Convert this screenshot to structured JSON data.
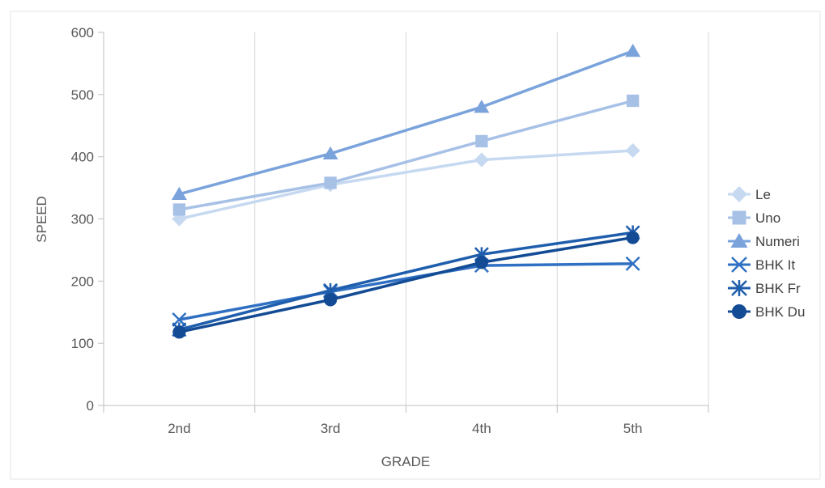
{
  "chart_data": {
    "type": "line",
    "title": "",
    "xlabel": "GRADE",
    "ylabel": "SPEED",
    "categories": [
      "2nd",
      "3rd",
      "4th",
      "5th"
    ],
    "ylim": [
      0,
      600
    ],
    "yticks": [
      0,
      100,
      200,
      300,
      400,
      500,
      600
    ],
    "grid": "vertical",
    "legend_position": "right",
    "series": [
      {
        "name": "Le",
        "values": [
          300,
          355,
          395,
          410
        ],
        "color": "#c6d9f1",
        "marker": "diamond"
      },
      {
        "name": "Uno",
        "values": [
          315,
          358,
          425,
          490
        ],
        "color": "#a7c1e6",
        "marker": "square"
      },
      {
        "name": "Numeri",
        "values": [
          340,
          405,
          480,
          570
        ],
        "color": "#7aa3dc",
        "marker": "triangle"
      },
      {
        "name": "BHK It",
        "values": [
          138,
          183,
          225,
          228
        ],
        "color": "#2f70c3",
        "marker": "x"
      },
      {
        "name": "BHK Fr",
        "values": [
          122,
          185,
          243,
          278
        ],
        "color": "#1f5ead",
        "marker": "asterisk"
      },
      {
        "name": "BHK Du",
        "values": [
          118,
          170,
          230,
          270
        ],
        "color": "#134b94",
        "marker": "circle"
      }
    ]
  }
}
